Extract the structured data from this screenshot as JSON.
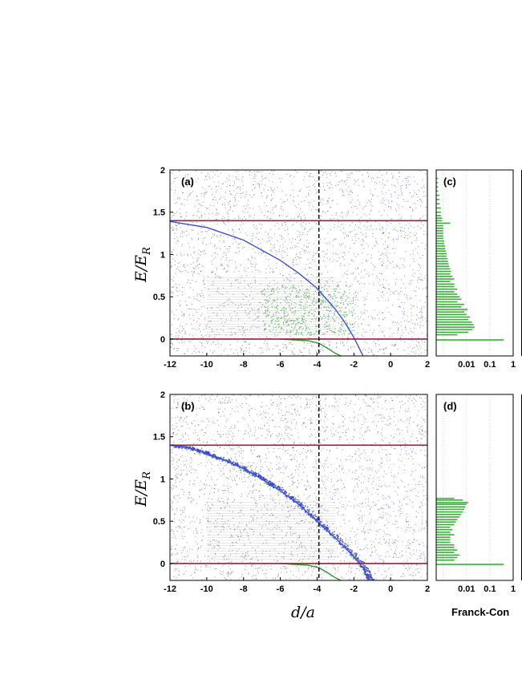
{
  "figure": {
    "xlabel": "d/a",
    "ylabel_main": "E/E",
    "ylabel_sub": "R",
    "fc_label": "Franck-Con"
  },
  "colors": {
    "threshold_line": "#9b1c3c",
    "upper_curve": "#3a4fe0",
    "lower_curve": "#2e9a2e",
    "fc_bars": "#33b233",
    "dots_black": "#2a2a2a",
    "dots_blue": "#3a3acc",
    "dots_green": "#3cb83c",
    "dashed_line": "#000000"
  },
  "chart_data": [
    {
      "panel": "(a)",
      "type": "scatter",
      "x_ticks": [
        "-12",
        "-10",
        "-8",
        "-6",
        "-4",
        "-2",
        "0",
        "2"
      ],
      "y_ticks": [
        "0",
        "0.5",
        "1",
        "1.5",
        "2"
      ],
      "xlim": [
        -12,
        2
      ],
      "ylim": [
        -0.2,
        2
      ],
      "hlines": [
        0,
        1.4
      ],
      "vline_dashed": -3.9,
      "curves": [
        {
          "color": "blue",
          "points": [
            [
              -12,
              1.39
            ],
            [
              -10,
              1.32
            ],
            [
              -8,
              1.17
            ],
            [
              -6,
              0.93
            ],
            [
              -5,
              0.78
            ],
            [
              -4,
              0.6
            ],
            [
              -3,
              0.35
            ],
            [
              -2.5,
              0.2
            ],
            [
              -2,
              0.02
            ],
            [
              -1.5,
              -0.2
            ]
          ]
        },
        {
          "color": "green",
          "points": [
            [
              -6,
              0.0
            ],
            [
              -4.5,
              -0.02
            ],
            [
              -3.9,
              -0.05
            ],
            [
              -3.5,
              -0.1
            ],
            [
              -3,
              -0.17
            ],
            [
              -2.7,
              -0.2
            ]
          ]
        }
      ]
    },
    {
      "panel": "(b)",
      "type": "scatter",
      "x_ticks": [
        "-12",
        "-10",
        "-8",
        "-6",
        "-4",
        "-2",
        "0",
        "2"
      ],
      "y_ticks": [
        "0",
        "0.5",
        "1",
        "1.5",
        "2"
      ],
      "xlim": [
        -12,
        2
      ],
      "ylim": [
        -0.2,
        2
      ],
      "hlines": [
        0,
        1.4
      ],
      "vline_dashed": -3.9,
      "curves": [
        {
          "color": "blue",
          "points": [
            [
              -12,
              1.4
            ],
            [
              -11,
              1.37
            ],
            [
              -10,
              1.3
            ],
            [
              -9,
              1.22
            ],
            [
              -8,
              1.12
            ],
            [
              -7,
              1.0
            ],
            [
              -6,
              0.86
            ],
            [
              -5,
              0.7
            ],
            [
              -4,
              0.5
            ],
            [
              -3,
              0.3
            ],
            [
              -2,
              0.08
            ],
            [
              -1.5,
              -0.05
            ],
            [
              -1.2,
              -0.2
            ]
          ]
        },
        {
          "color": "green",
          "points": [
            [
              -6,
              0.0
            ],
            [
              -4.5,
              -0.02
            ],
            [
              -3.9,
              -0.05
            ],
            [
              -3.5,
              -0.1
            ],
            [
              -3,
              -0.17
            ],
            [
              -2.7,
              -0.2
            ]
          ]
        }
      ]
    },
    {
      "panel": "(c)",
      "type": "bar",
      "orientation": "horizontal",
      "x_scale": "log",
      "x_ticks": [
        "0.01",
        "0.1",
        "1"
      ],
      "ylim": [
        -0.2,
        2
      ],
      "bar_energies": [
        -0.01,
        0.05,
        0.08,
        0.11,
        0.14,
        0.17,
        0.2,
        0.23,
        0.26,
        0.29,
        0.32,
        0.35,
        0.38,
        0.41,
        0.44,
        0.47,
        0.5,
        0.53,
        0.56,
        0.59,
        0.62,
        0.65,
        0.68,
        0.71,
        0.74,
        0.77,
        0.8,
        0.83,
        0.86,
        0.89,
        0.92,
        0.95,
        0.98,
        1.01,
        1.04,
        1.07,
        1.1,
        1.13,
        1.16,
        1.19,
        1.22,
        1.25,
        1.28,
        1.31,
        1.34,
        1.37,
        1.4,
        1.43,
        1.46,
        1.5,
        1.55,
        1.6,
        1.65,
        1.7,
        1.75,
        1.8,
        1.85,
        1.9
      ],
      "bar_values": [
        0.4,
        0.004,
        0.012,
        0.018,
        0.022,
        0.02,
        0.017,
        0.012,
        0.014,
        0.01,
        0.008,
        0.011,
        0.006,
        0.008,
        0.004,
        0.006,
        0.005,
        0.004,
        0.003,
        0.004,
        0.003,
        0.003,
        0.002,
        0.003,
        0.0025,
        0.002,
        0.0022,
        0.002,
        0.0018,
        0.0017,
        0.0016,
        0.0015,
        0.0014,
        0.0014,
        0.0013,
        0.0012,
        0.0012,
        0.0011,
        0.0011,
        0.001,
        0.001,
        0.001,
        0.001,
        0.001,
        0.001,
        0.002,
        0.0009,
        0.0009,
        0.0008,
        0.0008,
        0.0008,
        0.0007,
        0.0007,
        0.0007,
        0.0006,
        0.0006,
        0.0006,
        0.0006
      ]
    },
    {
      "panel": "(d)",
      "type": "bar",
      "orientation": "horizontal",
      "x_scale": "log",
      "x_ticks": [
        "0.01",
        "0.1",
        "1"
      ],
      "ylim": [
        -0.2,
        2
      ],
      "bar_energies": [
        -0.01,
        0.04,
        0.07,
        0.1,
        0.13,
        0.16,
        0.19,
        0.22,
        0.25,
        0.28,
        0.31,
        0.34,
        0.37,
        0.4,
        0.43,
        0.46,
        0.49,
        0.52,
        0.55,
        0.58,
        0.61,
        0.64,
        0.67,
        0.7,
        0.72,
        0.75,
        0.77
      ],
      "bar_values": [
        0.4,
        0.003,
        0.004,
        0.005,
        0.003,
        0.004,
        0.003,
        0.003,
        0.002,
        0.002,
        0.002,
        0.003,
        0.002,
        0.0025,
        0.002,
        0.003,
        0.0035,
        0.004,
        0.005,
        0.006,
        0.007,
        0.008,
        0.009,
        0.01,
        0.012,
        0.007,
        0.003
      ]
    }
  ]
}
